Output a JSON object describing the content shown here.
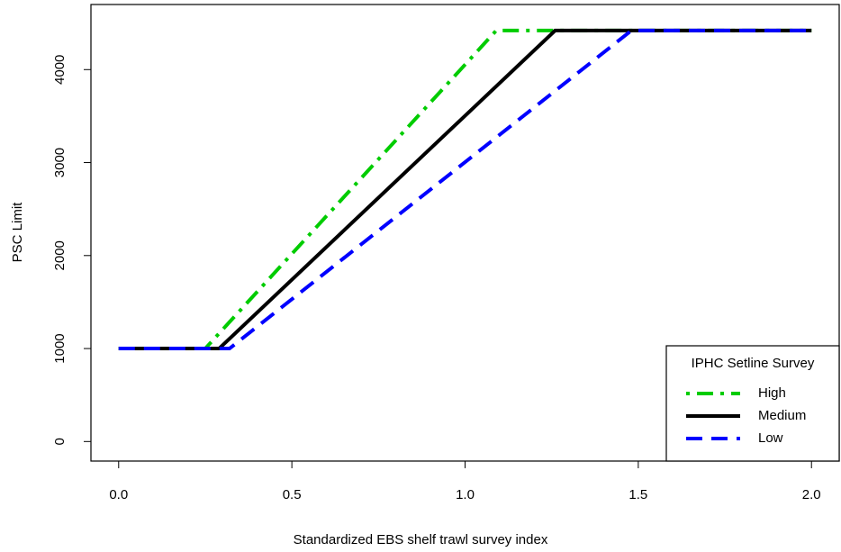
{
  "chart_data": {
    "type": "line",
    "xlabel": "Standardized EBS shelf trawl survey index",
    "ylabel": "PSC Limit",
    "xlim": [
      -0.08,
      2.08
    ],
    "xticks": [
      {
        "value": 0,
        "label": "0.0"
      },
      {
        "value": 0.5,
        "label": "0.5"
      },
      {
        "value": 1,
        "label": "1.0"
      },
      {
        "value": 1.5,
        "label": "1.5"
      },
      {
        "value": 2,
        "label": "2.0"
      }
    ],
    "ylim": [
      -210,
      4700
    ],
    "yticks": [
      0,
      1000,
      2000,
      3000,
      4000
    ],
    "legend_title": "IPHC Setline Survey",
    "legend": "bottomright",
    "series": [
      {
        "name": "High",
        "color": "#00cc00",
        "dash": "dotdash",
        "x": [
          0,
          0.25,
          1.09,
          2
        ],
        "values": [
          1000,
          1000,
          4420,
          4420
        ]
      },
      {
        "name": "Medium",
        "color": "#000000",
        "dash": "solid",
        "x": [
          0,
          0.29,
          1.26,
          2
        ],
        "values": [
          1000,
          1000,
          4420,
          4420
        ]
      },
      {
        "name": "Low",
        "color": "#0000ff",
        "dash": "dashed",
        "x": [
          0,
          0.32,
          1.48,
          2
        ],
        "values": [
          1000,
          1000,
          4420,
          4420
        ]
      }
    ]
  }
}
